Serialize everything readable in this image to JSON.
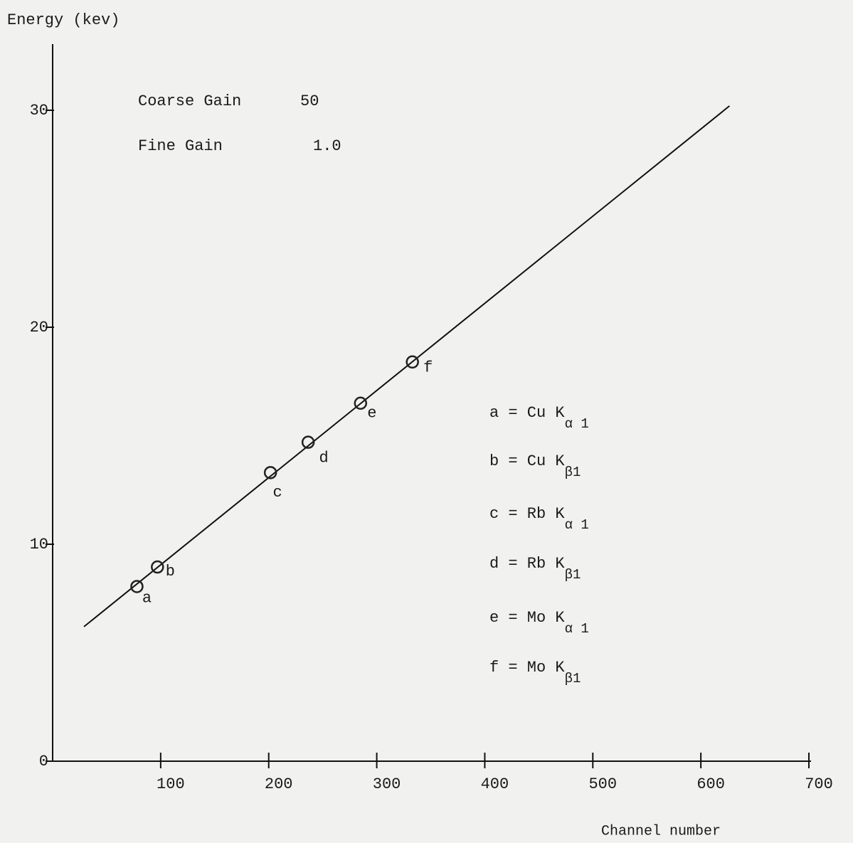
{
  "chart_data": {
    "type": "scatter",
    "y_label": "Energy (kev)",
    "x_label": "Channel number",
    "xlim": [
      0,
      700
    ],
    "ylim": [
      0,
      33
    ],
    "xticks": [
      100,
      200,
      300,
      400,
      500,
      600,
      700
    ],
    "yticks": [
      0,
      10,
      20,
      30
    ],
    "series": [
      {
        "color": "#222222",
        "x": [
          78,
          97,
          201.6,
          236.5,
          285,
          333
        ],
        "values": [
          8.05,
          8.95,
          13.3,
          14.7,
          16.5,
          18.4
        ],
        "point_labels": [
          "a",
          "b",
          "c",
          "d",
          "e",
          "f"
        ]
      }
    ],
    "fit_line": {
      "color": "#111111",
      "x": [
        29,
        626.5
      ],
      "values": [
        6.2,
        30.2
      ]
    },
    "annotations": [
      {
        "label": "Coarse Gain",
        "value": "50"
      },
      {
        "label": "Fine  Gain",
        "value": "1.0"
      }
    ],
    "legend": [
      {
        "text": "a = Cu K",
        "sub": "α 1"
      },
      {
        "text": "b = Cu K",
        "sub": "β1"
      },
      {
        "text": "c = Rb K",
        "sub": "α 1"
      },
      {
        "text": "d = Rb K",
        "sub": "β1"
      },
      {
        "text": "e = Mo K",
        "sub": "α 1"
      },
      {
        "text": "f = Mo K",
        "sub": "β1"
      }
    ]
  }
}
